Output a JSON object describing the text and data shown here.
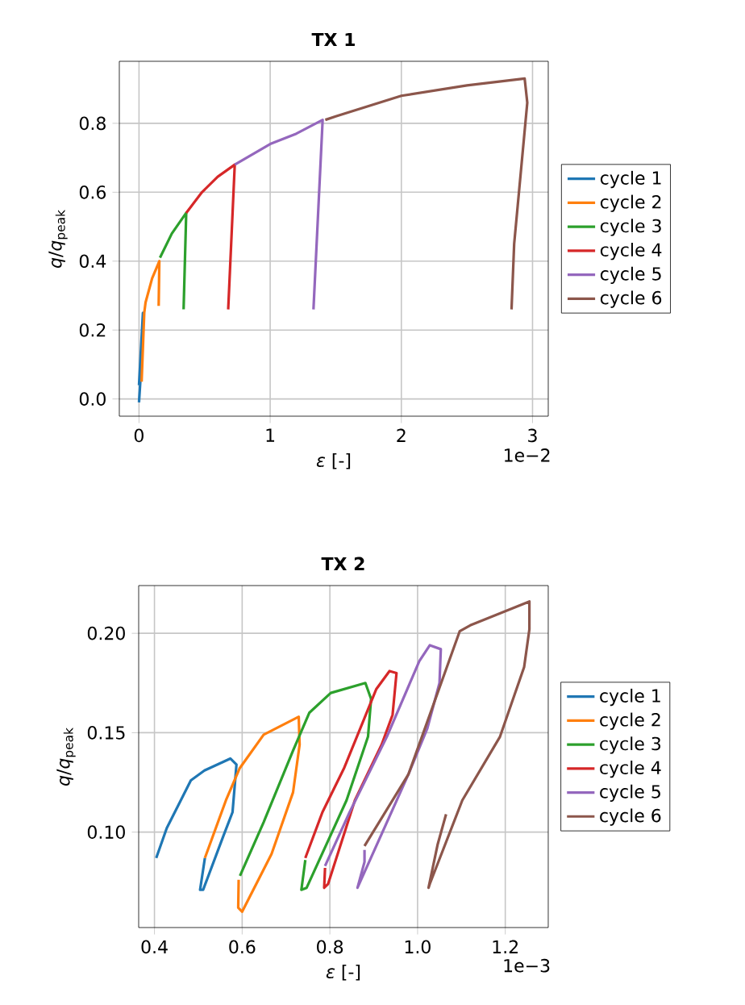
{
  "chart_data": [
    {
      "type": "line",
      "title": "TX 1",
      "xlabel": "*ε* [-]",
      "ylabel": "*q*/*q*$_{peak}$",
      "annotations": [
        "1e−2"
      ],
      "grid": true,
      "legend": "right",
      "xlim": [
        -0.15,
        3.12
      ],
      "ylim": [
        -0.05,
        0.98
      ],
      "xticks": [
        0,
        1,
        2,
        3
      ],
      "yticks": [
        {
          "value": 0,
          "label": "0.0"
        },
        {
          "value": 0.2,
          "label": "0.2"
        },
        {
          "value": 0.4,
          "label": "0.4"
        },
        {
          "value": 0.6,
          "label": "0.6"
        },
        {
          "value": 0.8,
          "label": "0.8"
        }
      ],
      "series": [
        {
          "name": "cycle 1",
          "color": "#1f77b4",
          "x": [
            0.0,
            0.01,
            0.02,
            0.03,
            0.0
          ],
          "values": [
            -0.01,
            0.05,
            0.15,
            0.25,
            0.04
          ]
        },
        {
          "name": "cycle 2",
          "color": "#ff7f0e",
          "x": [
            0.02,
            0.04,
            0.05,
            0.1,
            0.155,
            0.15
          ],
          "values": [
            0.05,
            0.25,
            0.28,
            0.35,
            0.4,
            0.27
          ]
        },
        {
          "name": "cycle 3",
          "color": "#2ca02c",
          "x": [
            0.16,
            0.25,
            0.36,
            0.34
          ],
          "values": [
            0.41,
            0.48,
            0.54,
            0.26
          ]
        },
        {
          "name": "cycle 4",
          "color": "#d62728",
          "x": [
            0.36,
            0.48,
            0.6,
            0.73,
            0.68
          ],
          "values": [
            0.54,
            0.6,
            0.645,
            0.68,
            0.26
          ]
        },
        {
          "name": "cycle 5",
          "color": "#9467bd",
          "x": [
            0.73,
            1.0,
            1.2,
            1.4,
            1.33
          ],
          "values": [
            0.68,
            0.74,
            0.77,
            0.81,
            0.26
          ]
        },
        {
          "name": "cycle 6",
          "color": "#8c564b",
          "x": [
            1.42,
            1.5,
            2.0,
            2.5,
            2.94,
            2.96,
            2.86,
            2.84
          ],
          "values": [
            0.81,
            0.82,
            0.88,
            0.91,
            0.93,
            0.86,
            0.45,
            0.26
          ]
        }
      ]
    },
    {
      "type": "line",
      "title": "TX 2",
      "xlabel": "*ε* [-]",
      "ylabel": "*q*/*q*$_{peak}$",
      "annotations": [
        "1e−3"
      ],
      "grid": true,
      "legend": "right",
      "xlim": [
        0.364,
        1.298
      ],
      "ylim": [
        0.052,
        0.224
      ],
      "xticks": [
        {
          "value": 0.4,
          "label": "0.4"
        },
        {
          "value": 0.6,
          "label": "0.6"
        },
        {
          "value": 0.8,
          "label": "0.8"
        },
        {
          "value": 1.0,
          "label": "1.0"
        },
        {
          "value": 1.2,
          "label": "1.2"
        }
      ],
      "yticks": [
        {
          "value": 0.1,
          "label": "0.10"
        },
        {
          "value": 0.15,
          "label": "0.15"
        },
        {
          "value": 0.2,
          "label": "0.20"
        }
      ],
      "series": [
        {
          "name": "cycle 1",
          "color": "#1f77b4",
          "x": [
            0.404,
            0.428,
            0.483,
            0.514,
            0.573,
            0.587,
            0.578,
            0.557,
            0.511,
            0.504,
            0.515
          ],
          "values": [
            0.087,
            0.102,
            0.126,
            0.131,
            0.137,
            0.134,
            0.11,
            0.098,
            0.071,
            0.071,
            0.087
          ]
        },
        {
          "name": "cycle 2",
          "color": "#ff7f0e",
          "x": [
            0.515,
            0.563,
            0.594,
            0.649,
            0.729,
            0.731,
            0.716,
            0.667,
            0.6,
            0.591,
            0.592
          ],
          "values": [
            0.087,
            0.116,
            0.132,
            0.149,
            0.158,
            0.144,
            0.12,
            0.089,
            0.06,
            0.062,
            0.076
          ]
        },
        {
          "name": "cycle 3",
          "color": "#2ca02c",
          "x": [
            0.595,
            0.649,
            0.716,
            0.753,
            0.802,
            0.881,
            0.894,
            0.887,
            0.838,
            0.747,
            0.735,
            0.744
          ],
          "values": [
            0.078,
            0.105,
            0.141,
            0.16,
            0.17,
            0.175,
            0.167,
            0.148,
            0.116,
            0.072,
            0.071,
            0.086
          ]
        },
        {
          "name": "cycle 4",
          "color": "#d62728",
          "x": [
            0.744,
            0.783,
            0.832,
            0.906,
            0.936,
            0.952,
            0.943,
            0.918,
            0.857,
            0.796,
            0.787,
            0.789
          ],
          "values": [
            0.087,
            0.11,
            0.132,
            0.172,
            0.181,
            0.18,
            0.159,
            0.144,
            0.116,
            0.074,
            0.072,
            0.082
          ]
        },
        {
          "name": "cycle 5",
          "color": "#9467bd",
          "x": [
            0.789,
            0.845,
            0.93,
            1.004,
            1.028,
            1.053,
            1.05,
            1.022,
            0.979,
            0.863,
            0.879,
            0.879
          ],
          "values": [
            0.083,
            0.11,
            0.148,
            0.186,
            0.194,
            0.192,
            0.175,
            0.152,
            0.129,
            0.072,
            0.085,
            0.091
          ]
        },
        {
          "name": "cycle 6",
          "color": "#8c564b",
          "x": [
            0.879,
            0.979,
            1.096,
            1.12,
            1.255,
            1.255,
            1.243,
            1.188,
            1.102,
            1.028,
            1.025,
            1.046,
            1.065
          ],
          "values": [
            0.093,
            0.129,
            0.201,
            0.204,
            0.216,
            0.202,
            0.183,
            0.148,
            0.116,
            0.074,
            0.072,
            0.094,
            0.109
          ]
        }
      ]
    }
  ]
}
